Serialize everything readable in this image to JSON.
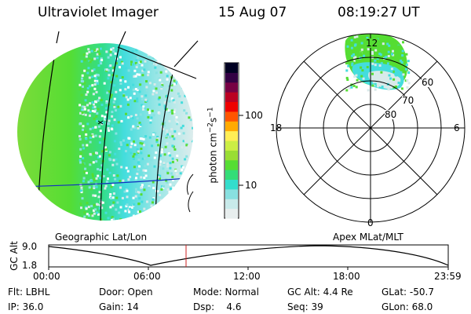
{
  "header": {
    "instrument": "Ultraviolet Imager",
    "date": "15 Aug 07",
    "time": "08:19:27 UT"
  },
  "colorbar": {
    "label": "photon cm",
    "sup1": "−2",
    "mid": "s",
    "sup2": "−1",
    "ticks": [
      "100",
      "10"
    ]
  },
  "polar": {
    "mlat_labels": [
      "60",
      "70",
      "80"
    ],
    "mlt_labels": [
      "12",
      "18",
      "6",
      "0"
    ]
  },
  "plot": {
    "left_label": "Geographic Lat/Lon",
    "right_label": "Apex MLat/MLT",
    "ylabel": "GC Alt",
    "y_ticks": [
      "9.0",
      "1.8"
    ],
    "x_ticks": [
      "00:00",
      "06:00",
      "12:00",
      "18:00",
      "23:59"
    ]
  },
  "info": {
    "filter": "Flt: LBHL",
    "ip": "IP: 36.0",
    "door": "Door: Open",
    "gain": "Gain: 14",
    "mode": "Mode: Normal",
    "dsp": "Dsp:    4.6",
    "gc_alt": "GC Alt: 4.4 Re",
    "seq": "Seq: 39",
    "glat": "GLat: -50.7",
    "glon": "GLon: 68.0"
  },
  "colors": {
    "background": "#ffffff",
    "foreground": "#000000",
    "equator_line": "#1030c0",
    "time_marker": "#cc2020",
    "green": "#55dd33",
    "cyan": "#44dddd",
    "light": "#d8eaea"
  }
}
